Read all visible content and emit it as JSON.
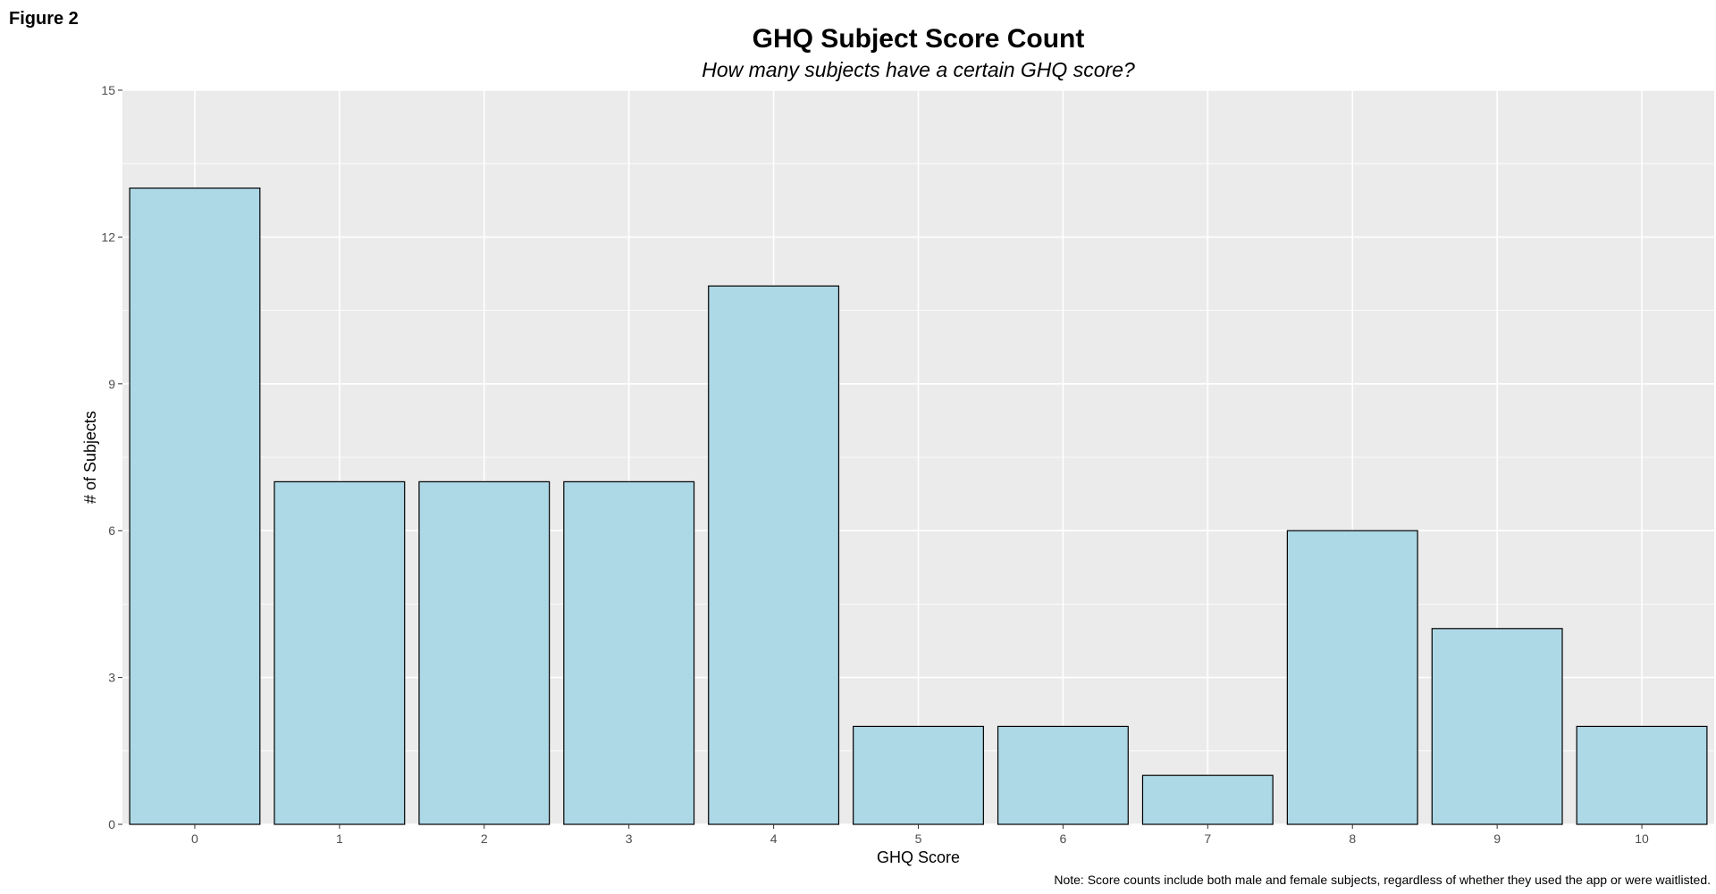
{
  "figure_label": "Figure 2",
  "chart_data": {
    "type": "bar",
    "title": "GHQ Subject Score Count",
    "subtitle": "How many subjects have a certain GHQ score?",
    "xlabel": "GHQ Score",
    "ylabel": "# of Subjects",
    "caption": "Note: Score counts include both male and female subjects, regardless of whether they used the app or were waitlisted.",
    "categories": [
      "0",
      "1",
      "2",
      "3",
      "4",
      "5",
      "6",
      "7",
      "8",
      "9",
      "10"
    ],
    "values": [
      13,
      7,
      7,
      7,
      11,
      2,
      2,
      1,
      6,
      4,
      2
    ],
    "ylim": [
      0,
      15
    ],
    "yticks": [
      0,
      3,
      6,
      9,
      12,
      15
    ],
    "grid": true,
    "legend": "none",
    "colors": {
      "bar_fill": "#ADD8E6",
      "bar_stroke": "#000000",
      "panel_background": "#EBEBEB",
      "grid_line": "#FFFFFF",
      "tick_label": "#4D4D4D",
      "text": "#000000"
    }
  }
}
